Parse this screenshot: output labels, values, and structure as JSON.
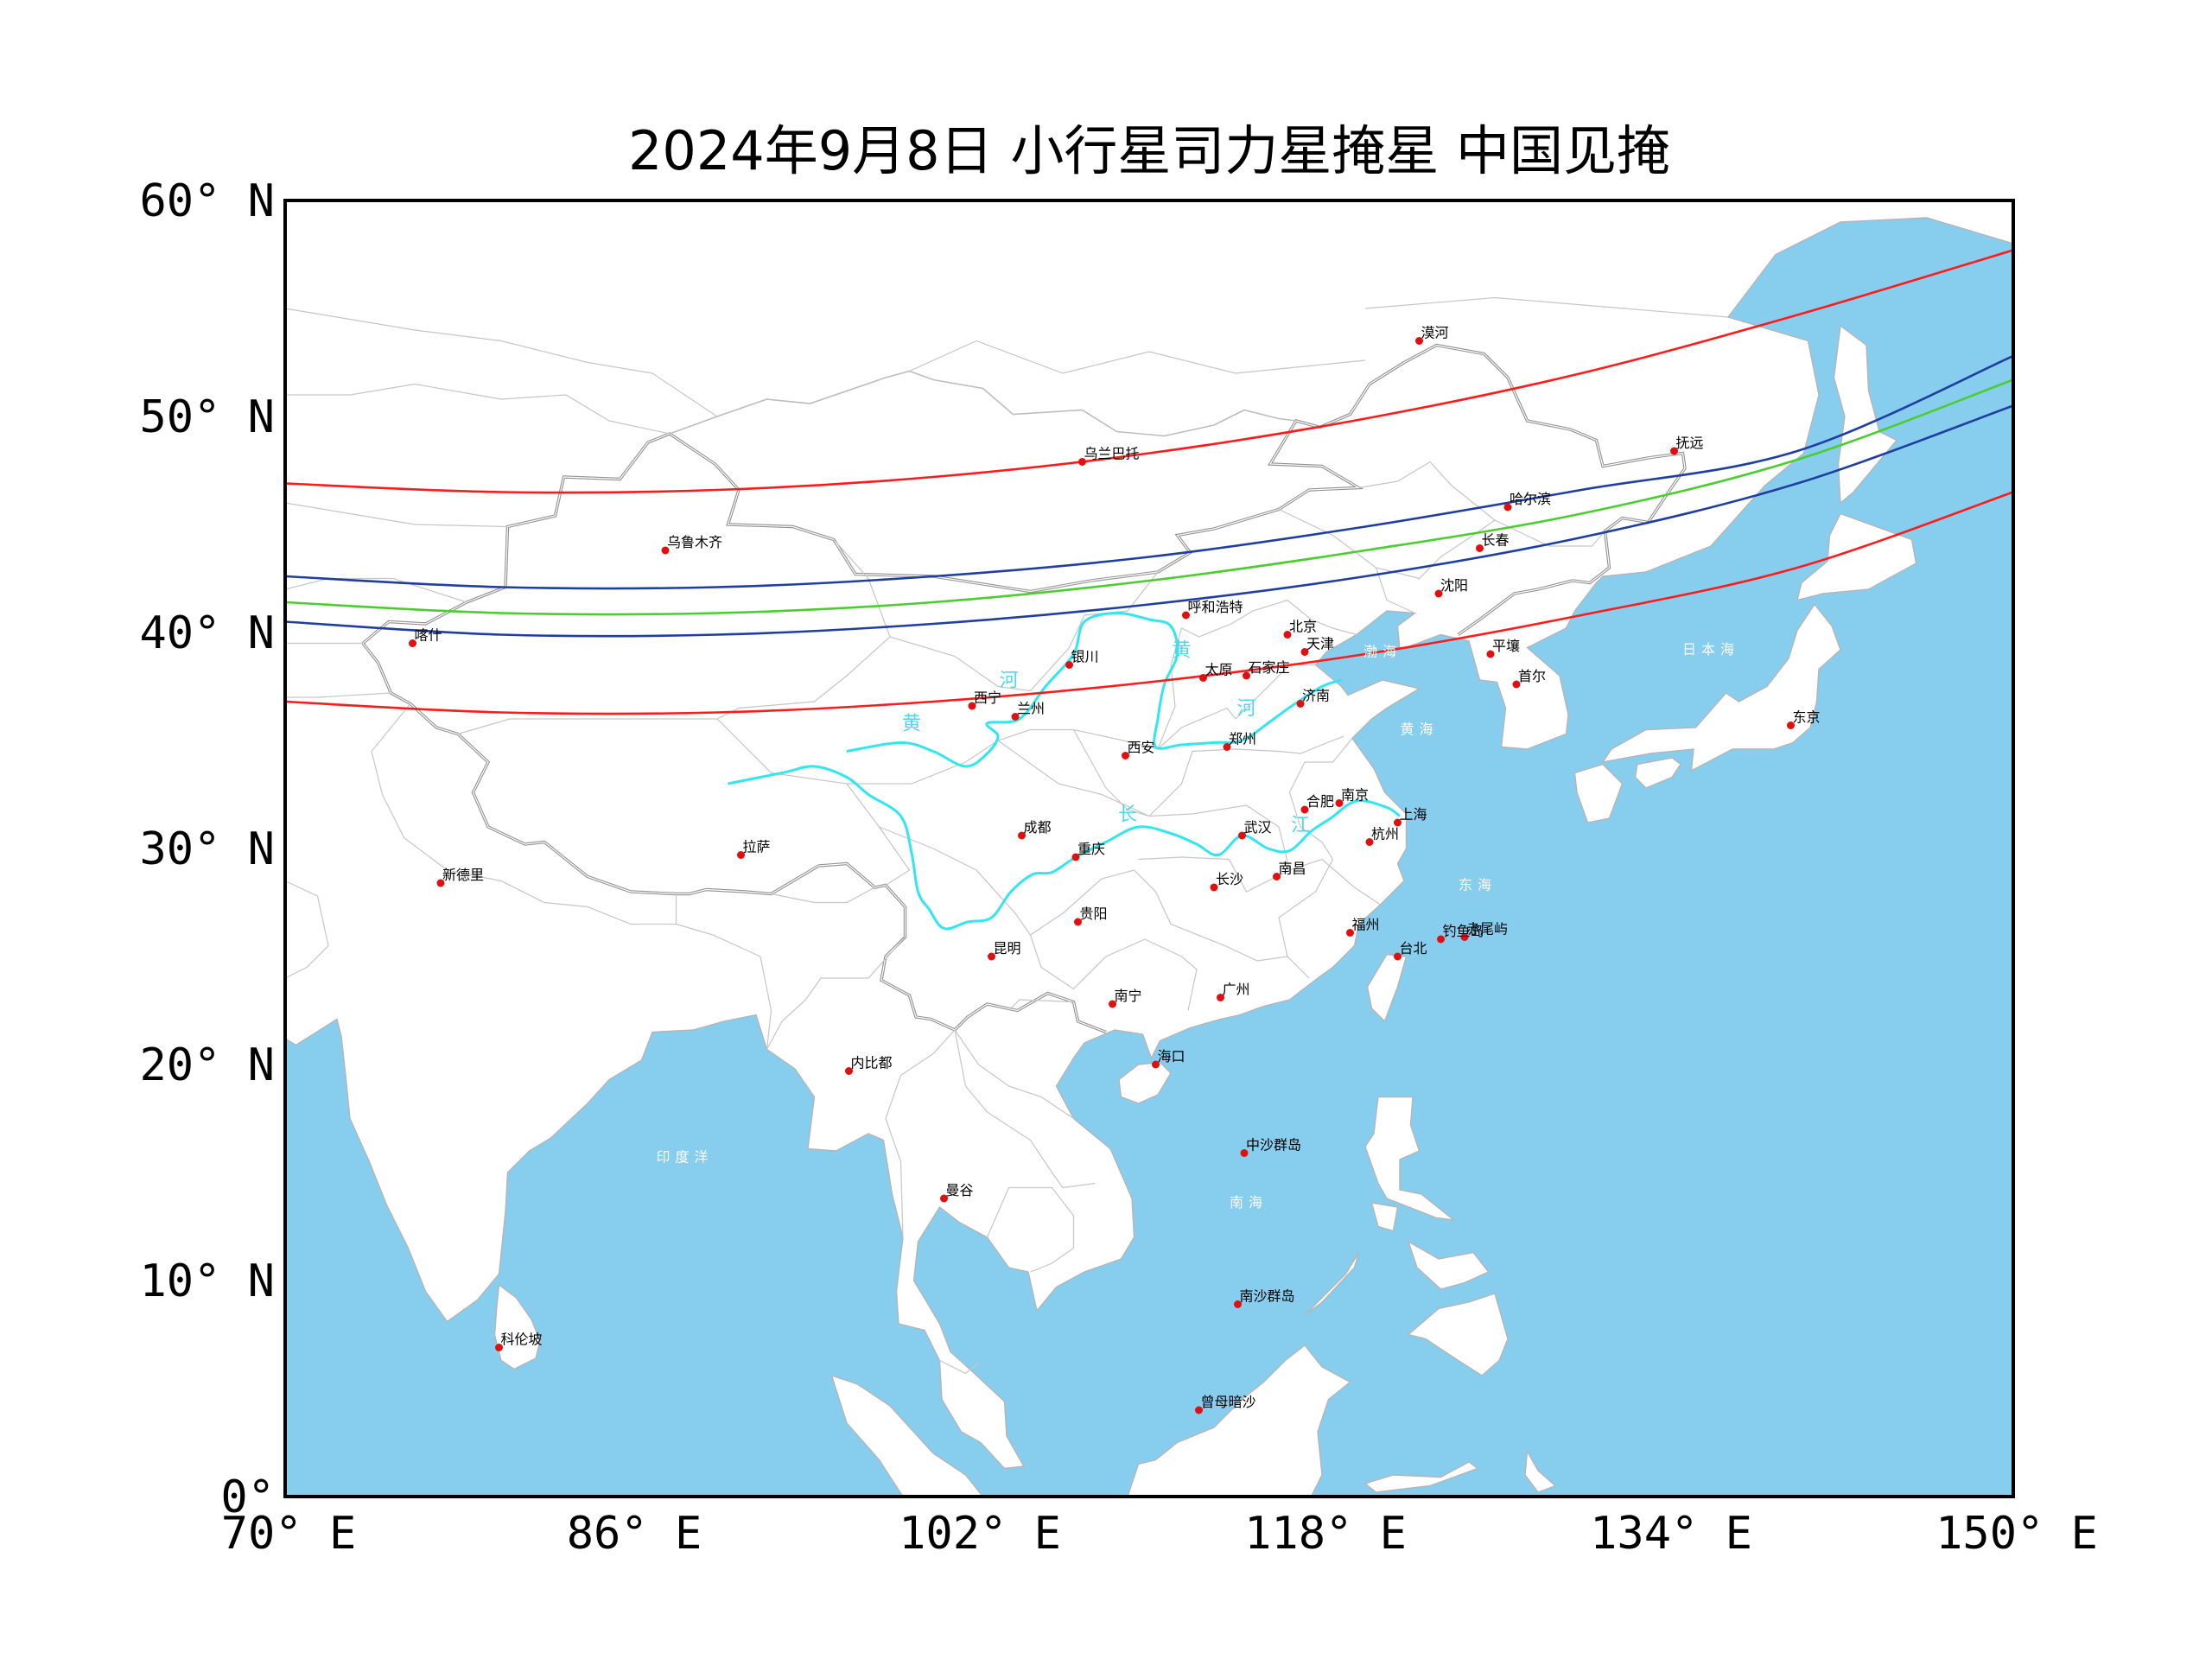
{
  "title": "2024年9月8日 小行星司力星掩星 中国见掩",
  "axes": {
    "lat_ticks": [
      "60° N",
      "50° N",
      "40° N",
      "30° N",
      "20° N",
      "10° N",
      "0°"
    ],
    "lon_ticks": [
      "70° E",
      "86° E",
      "102° E",
      "118° E",
      "134° E",
      "150° E"
    ],
    "lat_range": [
      0,
      60
    ],
    "lon_range": [
      70,
      150
    ]
  },
  "colors": {
    "ocean": "#87ceee",
    "land": "#ffffff",
    "border": "#a6a6a6",
    "river": "#32e6f0",
    "city_dot": "#e01010",
    "limit_line": "#ff1b1b",
    "shadow_edge": "#1f3ea0",
    "center_line": "#4ccd2f"
  },
  "occultation_tracks": [
    {
      "kind": "limit",
      "color": "#ff1b1b",
      "points": [
        [
          70,
          46.9
        ],
        [
          80,
          46.5
        ],
        [
          90,
          46.6
        ],
        [
          100,
          47.2
        ],
        [
          110,
          48.3
        ],
        [
          120,
          49.9
        ],
        [
          130,
          52.0
        ],
        [
          140,
          54.7
        ],
        [
          150,
          57.7
        ]
      ]
    },
    {
      "kind": "shadow-edge",
      "color": "#1f3ea0",
      "points": [
        [
          70,
          42.6
        ],
        [
          80,
          42.1
        ],
        [
          90,
          42.1
        ],
        [
          100,
          42.6
        ],
        [
          110,
          43.5
        ],
        [
          120,
          44.9
        ],
        [
          130,
          46.6
        ],
        [
          140,
          48.4
        ],
        [
          150,
          52.8
        ]
      ]
    },
    {
      "kind": "center",
      "color": "#4ccd2f",
      "points": [
        [
          70,
          41.4
        ],
        [
          80,
          40.9
        ],
        [
          90,
          40.9
        ],
        [
          100,
          41.4
        ],
        [
          110,
          42.4
        ],
        [
          120,
          43.8
        ],
        [
          130,
          45.5
        ],
        [
          140,
          48.0
        ],
        [
          150,
          51.7
        ]
      ]
    },
    {
      "kind": "shadow-edge",
      "color": "#1f3ea0",
      "points": [
        [
          70,
          40.5
        ],
        [
          80,
          39.9
        ],
        [
          90,
          39.9
        ],
        [
          100,
          40.4
        ],
        [
          110,
          41.3
        ],
        [
          120,
          42.6
        ],
        [
          130,
          44.4
        ],
        [
          140,
          46.9
        ],
        [
          150,
          50.5
        ]
      ]
    },
    {
      "kind": "limit",
      "color": "#ff1b1b",
      "points": [
        [
          70,
          36.8
        ],
        [
          80,
          36.3
        ],
        [
          90,
          36.3
        ],
        [
          100,
          36.8
        ],
        [
          110,
          37.7
        ],
        [
          120,
          39.0
        ],
        [
          130,
          40.8
        ],
        [
          140,
          43.0
        ],
        [
          150,
          46.5
        ]
      ]
    }
  ],
  "cities": [
    {
      "name": "漠河",
      "lon": 122.5,
      "lat": 53.5
    },
    {
      "name": "乌兰巴托",
      "lon": 106.9,
      "lat": 47.9
    },
    {
      "name": "抚远",
      "lon": 134.3,
      "lat": 48.4
    },
    {
      "name": "哈尔滨",
      "lon": 126.6,
      "lat": 45.8
    },
    {
      "name": "乌鲁木齐",
      "lon": 87.6,
      "lat": 43.8
    },
    {
      "name": "长春",
      "lon": 125.3,
      "lat": 43.9
    },
    {
      "name": "沈阳",
      "lon": 123.4,
      "lat": 41.8
    },
    {
      "name": "呼和浩特",
      "lon": 111.7,
      "lat": 40.8
    },
    {
      "name": "北京",
      "lon": 116.4,
      "lat": 39.9
    },
    {
      "name": "天津",
      "lon": 117.2,
      "lat": 39.1
    },
    {
      "name": "喀什",
      "lon": 75.9,
      "lat": 39.5
    },
    {
      "name": "平壤",
      "lon": 125.8,
      "lat": 39.0
    },
    {
      "name": "银川",
      "lon": 106.3,
      "lat": 38.5
    },
    {
      "name": "太原",
      "lon": 112.5,
      "lat": 37.9
    },
    {
      "name": "石家庄",
      "lon": 114.5,
      "lat": 38.0
    },
    {
      "name": "首尔",
      "lon": 127.0,
      "lat": 37.6
    },
    {
      "name": "西宁",
      "lon": 101.8,
      "lat": 36.6
    },
    {
      "name": "济南",
      "lon": 117.0,
      "lat": 36.7
    },
    {
      "name": "兰州",
      "lon": 103.8,
      "lat": 36.1
    },
    {
      "name": "东京",
      "lon": 139.7,
      "lat": 35.7
    },
    {
      "name": "郑州",
      "lon": 113.6,
      "lat": 34.7
    },
    {
      "name": "西安",
      "lon": 108.9,
      "lat": 34.3
    },
    {
      "name": "合肥",
      "lon": 117.2,
      "lat": 31.8
    },
    {
      "name": "南京",
      "lon": 118.8,
      "lat": 32.1
    },
    {
      "name": "上海",
      "lon": 121.5,
      "lat": 31.2
    },
    {
      "name": "成都",
      "lon": 104.1,
      "lat": 30.6
    },
    {
      "name": "武汉",
      "lon": 114.3,
      "lat": 30.6
    },
    {
      "name": "杭州",
      "lon": 120.2,
      "lat": 30.3
    },
    {
      "name": "拉萨",
      "lon": 91.1,
      "lat": 29.7
    },
    {
      "name": "重庆",
      "lon": 106.6,
      "lat": 29.6
    },
    {
      "name": "南昌",
      "lon": 115.9,
      "lat": 28.7
    },
    {
      "name": "新德里",
      "lon": 77.2,
      "lat": 28.4
    },
    {
      "name": "长沙",
      "lon": 113.0,
      "lat": 28.2
    },
    {
      "name": "贵阳",
      "lon": 106.7,
      "lat": 26.6
    },
    {
      "name": "福州",
      "lon": 119.3,
      "lat": 26.1
    },
    {
      "name": "赤尾屿",
      "lon": 124.6,
      "lat": 25.9
    },
    {
      "name": "钓鱼岛",
      "lon": 123.5,
      "lat": 25.8
    },
    {
      "name": "台北",
      "lon": 121.5,
      "lat": 25.0
    },
    {
      "name": "昆明",
      "lon": 102.7,
      "lat": 25.0
    },
    {
      "name": "广州",
      "lon": 113.3,
      "lat": 23.1
    },
    {
      "name": "南宁",
      "lon": 108.3,
      "lat": 22.8
    },
    {
      "name": "海口",
      "lon": 110.3,
      "lat": 20.0
    },
    {
      "name": "内比都",
      "lon": 96.1,
      "lat": 19.7
    },
    {
      "name": "中沙群岛",
      "lon": 114.4,
      "lat": 15.9
    },
    {
      "name": "曼谷",
      "lon": 100.5,
      "lat": 13.8
    },
    {
      "name": "南沙群岛",
      "lon": 114.1,
      "lat": 8.9
    },
    {
      "name": "科伦坡",
      "lon": 79.9,
      "lat": 6.9
    },
    {
      "name": "曾母暗沙",
      "lon": 112.3,
      "lat": 4.0
    }
  ],
  "seas": [
    {
      "name": "渤海",
      "lon": 120.8,
      "lat": 38.9
    },
    {
      "name": "黄海",
      "lon": 122.5,
      "lat": 35.3
    },
    {
      "name": "日本海",
      "lon": 136.0,
      "lat": 39.0
    },
    {
      "name": "东海",
      "lon": 125.2,
      "lat": 28.1
    },
    {
      "name": "南海",
      "lon": 114.6,
      "lat": 13.4
    },
    {
      "name": "印度洋",
      "lon": 88.5,
      "lat": 15.5
    }
  ],
  "river_labels": [
    {
      "text": "黄",
      "lon": 99.0,
      "lat": 35.5
    },
    {
      "text": "河",
      "lon": 103.5,
      "lat": 37.5
    },
    {
      "text": "黄",
      "lon": 111.5,
      "lat": 38.9
    },
    {
      "text": "河",
      "lon": 114.5,
      "lat": 36.2
    },
    {
      "text": "长",
      "lon": 109.0,
      "lat": 31.3
    },
    {
      "text": "江",
      "lon": 117.0,
      "lat": 30.8
    }
  ]
}
